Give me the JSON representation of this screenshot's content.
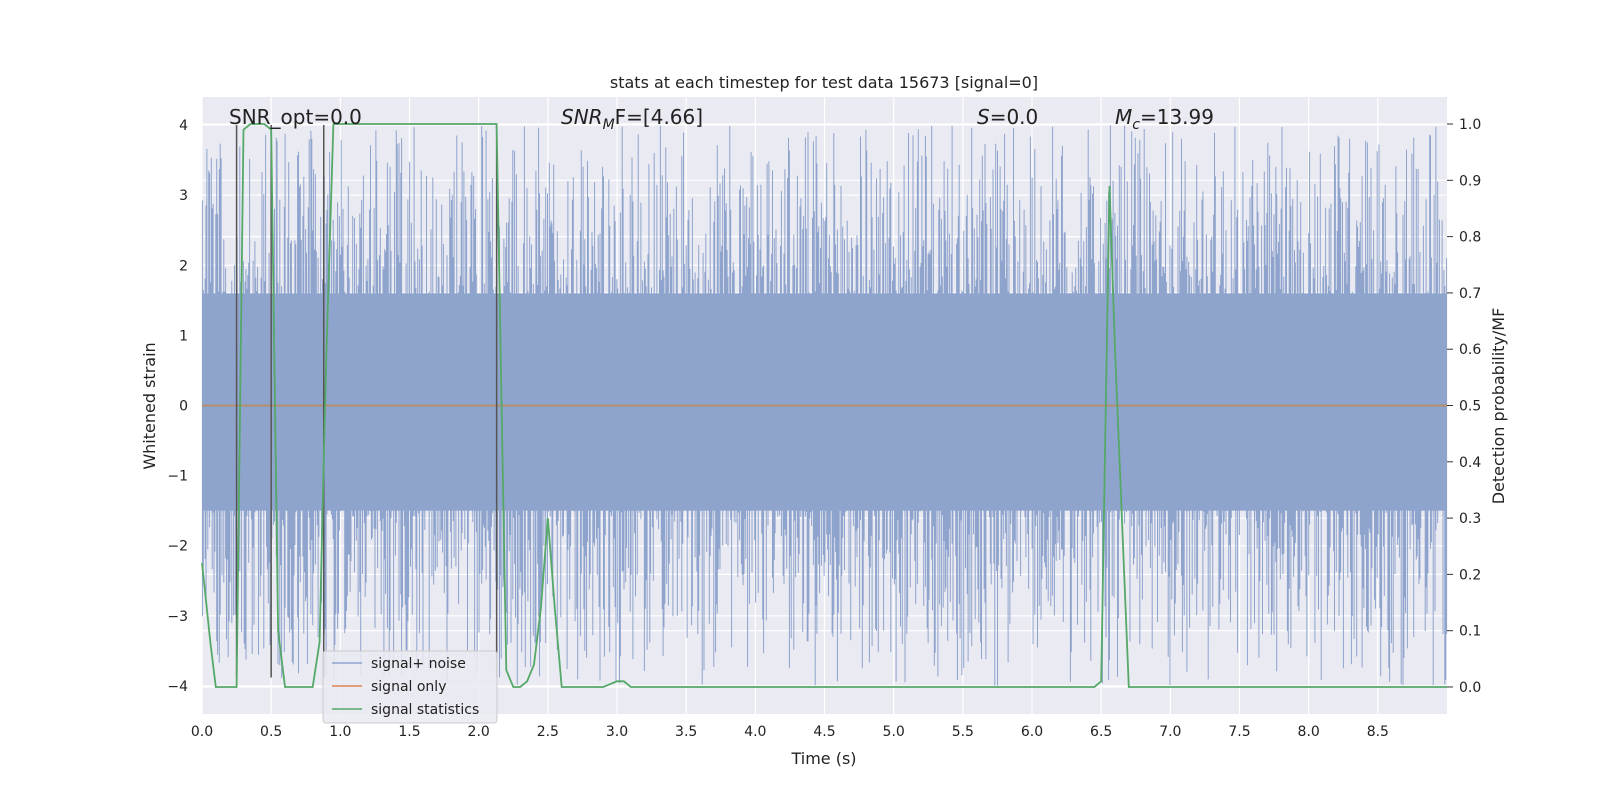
{
  "chart_data": {
    "type": "line",
    "title": "stats at each timestep for test data 15673 [signal=0]",
    "xlabel": "Time (s)",
    "ylabel_left": "Whitened strain",
    "ylabel_right": "Detection probability/MF",
    "xlim": [
      0.0,
      9.0
    ],
    "ylim_left": [
      -4.4,
      4.4
    ],
    "ylim_right": [
      -0.048,
      1.048
    ],
    "x_ticks": [
      "0.0",
      "0.5",
      "1.0",
      "1.5",
      "2.0",
      "2.5",
      "3.0",
      "3.5",
      "4.0",
      "4.5",
      "5.0",
      "5.5",
      "6.0",
      "6.5",
      "7.0",
      "7.5",
      "8.0",
      "8.5"
    ],
    "x_tick_values": [
      0.0,
      0.5,
      1.0,
      1.5,
      2.0,
      2.5,
      3.0,
      3.5,
      4.0,
      4.5,
      5.0,
      5.5,
      6.0,
      6.5,
      7.0,
      7.5,
      8.0,
      8.5
    ],
    "y_left_ticks": [
      "4",
      "3",
      "2",
      "1",
      "0",
      "−1",
      "−2",
      "−3",
      "−4"
    ],
    "y_left_tick_values": [
      4,
      3,
      2,
      1,
      0,
      -1,
      -2,
      -3,
      -4
    ],
    "y_right_ticks": [
      "1.0",
      "0.9",
      "0.8",
      "0.7",
      "0.6",
      "0.5",
      "0.4",
      "0.3",
      "0.2",
      "0.1",
      "0.0"
    ],
    "y_right_tick_values": [
      1.0,
      0.9,
      0.8,
      0.7,
      0.6,
      0.5,
      0.4,
      0.3,
      0.2,
      0.1,
      0.0
    ],
    "grid": true,
    "legend_placement": "lower-left",
    "annotations": {
      "snr_opt": "SNR_opt=0.0",
      "snr_mf_main": "SNR",
      "snr_mf_sub": "M",
      "snr_mf_rest": "F=[4.66]",
      "s_main": "S",
      "s_rest": "=0.0",
      "mc_main": "M",
      "mc_sub": "c",
      "mc_rest": "=13.99"
    },
    "series": [
      {
        "name": "signal+ noise",
        "color": "#8fa4cc",
        "axis": "left",
        "description_note": "dense whitened noise band; approximate spread",
        "band": {
          "x_start": 0.0,
          "x_end": 9.0,
          "typical_min": -1.5,
          "typical_max": 1.6,
          "extreme_min": -4.0,
          "extreme_max": 4.0
        }
      },
      {
        "name": "signal only",
        "color": "#dd8452",
        "axis": "left",
        "x": [
          0.0,
          9.0
        ],
        "y": [
          0.0,
          0.0
        ]
      },
      {
        "name": "signal statistics",
        "color": "#55a868",
        "axis": "right",
        "x": [
          0.0,
          0.03,
          0.06,
          0.1,
          0.2,
          0.25,
          0.3,
          0.35,
          0.4,
          0.45,
          0.5,
          0.55,
          0.6,
          0.7,
          0.8,
          0.85,
          0.88,
          0.9,
          0.95,
          1.0,
          1.2,
          1.5,
          1.8,
          2.0,
          2.1,
          2.13,
          2.2,
          2.25,
          2.3,
          2.35,
          2.4,
          2.45,
          2.5,
          2.55,
          2.6,
          2.65,
          2.7,
          2.8,
          2.9,
          3.0,
          3.05,
          3.1,
          3.3,
          3.6,
          4.0,
          4.5,
          5.0,
          5.5,
          6.0,
          6.3,
          6.45,
          6.5,
          6.52,
          6.56,
          6.6,
          6.65,
          6.7,
          6.8,
          7.0,
          7.5,
          8.0,
          8.5,
          8.7,
          9.0
        ],
        "y": [
          0.22,
          0.15,
          0.08,
          0.0,
          0.0,
          0.0,
          0.99,
          1.0,
          1.0,
          1.0,
          0.99,
          0.1,
          0.0,
          0.0,
          0.0,
          0.08,
          0.4,
          0.6,
          1.0,
          1.0,
          1.0,
          1.0,
          1.0,
          1.0,
          1.0,
          1.0,
          0.03,
          0.0,
          0.0,
          0.01,
          0.04,
          0.14,
          0.3,
          0.14,
          0.0,
          0.0,
          0.0,
          0.0,
          0.0,
          0.01,
          0.01,
          0.0,
          0.0,
          0.0,
          0.0,
          0.0,
          0.0,
          0.0,
          0.0,
          0.0,
          0.0,
          0.01,
          0.3,
          0.89,
          0.6,
          0.3,
          0.0,
          0.0,
          0.0,
          0.0,
          0.0,
          0.0,
          0.0,
          0.0
        ]
      }
    ],
    "vertical_markers": {
      "color": "#555555",
      "x": [
        0.25,
        0.5,
        0.88,
        2.13
      ]
    }
  }
}
